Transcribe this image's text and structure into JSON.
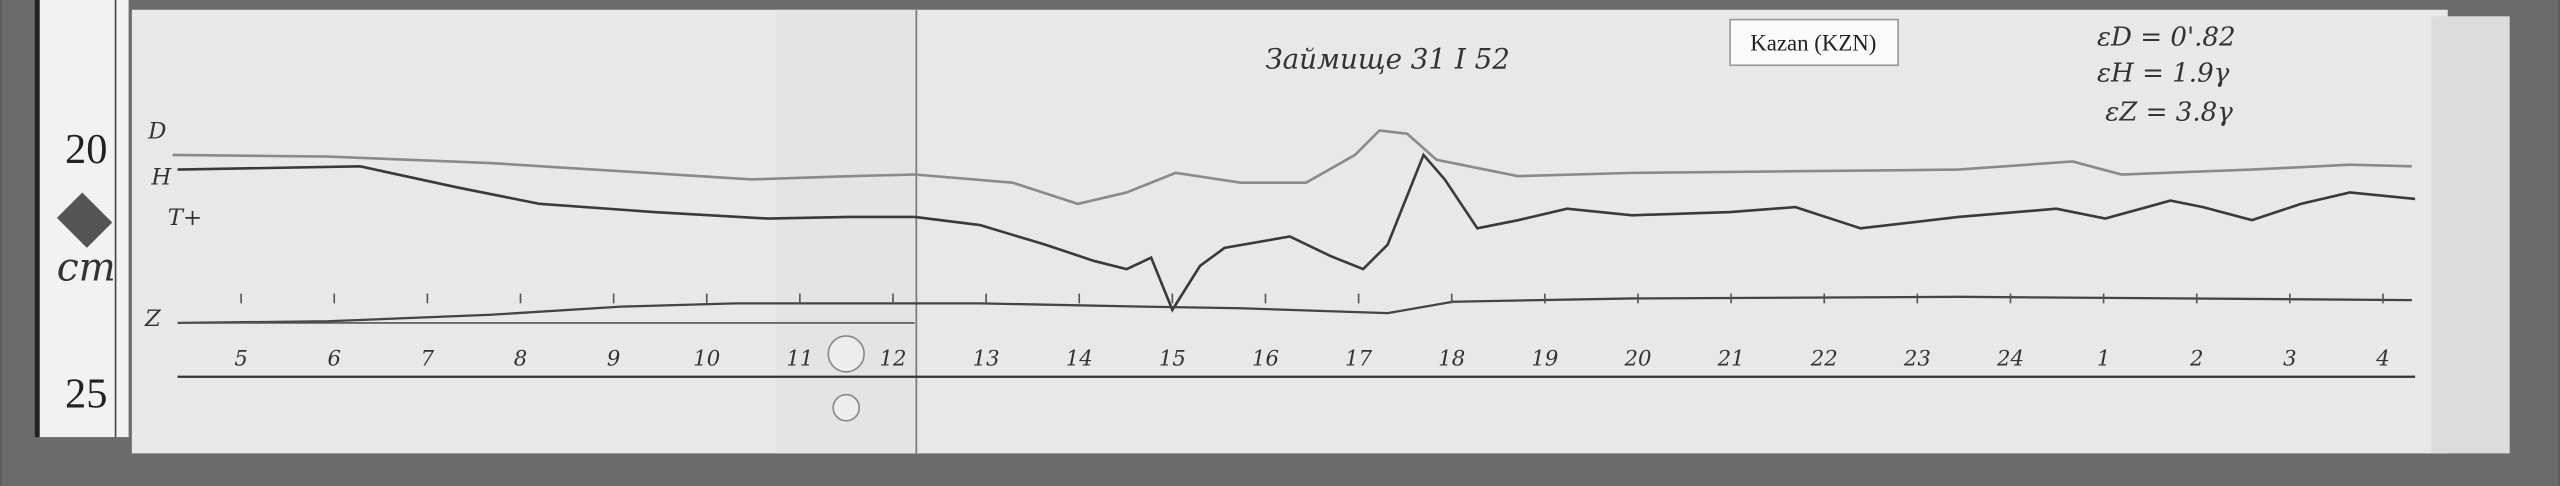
{
  "ruler": {
    "top": "20",
    "unit": "cm",
    "bottom": "25"
  },
  "station": "Kazan (KZN)",
  "header": "Займище 31 I 52",
  "scale_values": [
    "εD = 0'.82",
    "εH = 1.9γ",
    "εZ = 3.8γ"
  ],
  "trace_labels": [
    "D",
    "H",
    "T+",
    "Z"
  ],
  "hours": [
    "5",
    "6",
    "7",
    "8",
    "9",
    "10",
    "11",
    "12",
    "13",
    "14",
    "15",
    "16",
    "17",
    "18",
    "19",
    "20",
    "21",
    "22",
    "23",
    "24",
    "1",
    "2",
    "3",
    "4"
  ]
}
